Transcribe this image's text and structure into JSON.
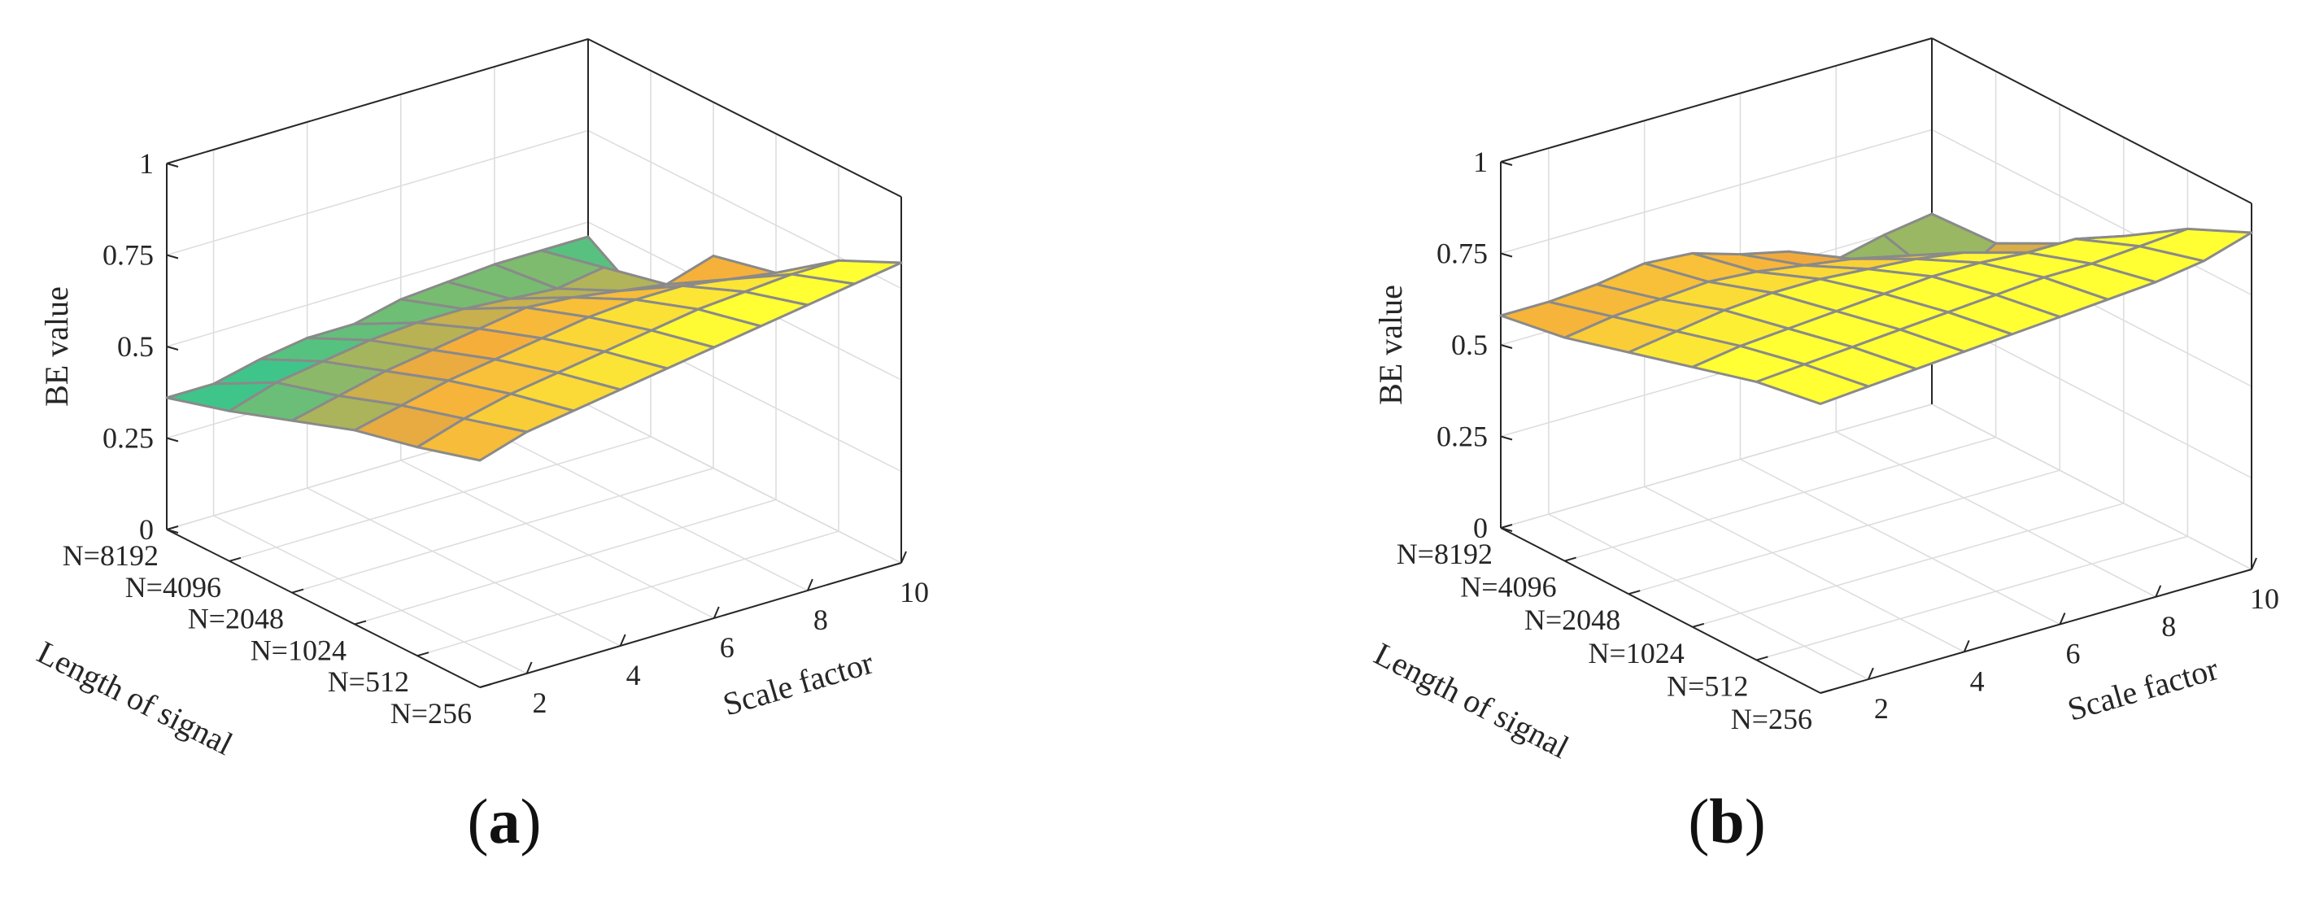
{
  "chart_data": [
    {
      "type": "surface3d",
      "caption": "a",
      "zlabel": "BE value",
      "xlabel": "Scale factor",
      "ylabel": "Length of signal",
      "x_ticks": [
        2,
        4,
        6,
        8,
        10
      ],
      "x_range": [
        1,
        10
      ],
      "y_categories": [
        "N=256",
        "N=512",
        "N=1024",
        "N=2048",
        "N=4096",
        "N=8192"
      ],
      "z_ticks": [
        "0",
        "0.25",
        "0.5",
        "0.75",
        "1"
      ],
      "z_range": [
        0,
        1
      ],
      "grid": true,
      "colormap": [
        "#3fc58a",
        "#f5a93b",
        "#ffff33"
      ],
      "scale_factors": [
        1,
        2,
        3,
        4,
        5,
        6,
        7,
        8,
        9,
        10
      ],
      "surface": [
        [
          0.62,
          0.66,
          0.68,
          0.7,
          0.72,
          0.74,
          0.76,
          0.78,
          0.8,
          0.82
        ],
        [
          0.57,
          0.61,
          0.64,
          0.66,
          0.68,
          0.7,
          0.72,
          0.73,
          0.74,
          0.74
        ],
        [
          0.53,
          0.56,
          0.59,
          0.61,
          0.63,
          0.65,
          0.66,
          0.66,
          0.64,
          0.62
        ],
        [
          0.47,
          0.5,
          0.53,
          0.55,
          0.57,
          0.59,
          0.58,
          0.56,
          0.54,
          0.58
        ],
        [
          0.41,
          0.45,
          0.47,
          0.49,
          0.5,
          0.5,
          0.49,
          0.48,
          0.5,
          0.35
        ],
        [
          0.36,
          0.36,
          0.39,
          0.41,
          0.41,
          0.44,
          0.45,
          0.46,
          0.46,
          0.46
        ]
      ]
    },
    {
      "type": "surface3d",
      "caption": "b",
      "zlabel": "BE value",
      "xlabel": "Scale factor",
      "ylabel": "Length of signal",
      "x_ticks": [
        2,
        4,
        6,
        8,
        10
      ],
      "x_range": [
        1,
        10
      ],
      "y_categories": [
        "N=256",
        "N=512",
        "N=1024",
        "N=2048",
        "N=4096",
        "N=8192"
      ],
      "z_ticks": [
        "0",
        "0.25",
        "0.5",
        "0.75",
        "1"
      ],
      "z_range": [
        0,
        1
      ],
      "grid": true,
      "colormap": [
        "#3fc58a",
        "#f5a93b",
        "#ffff33"
      ],
      "scale_factors": [
        1,
        2,
        3,
        4,
        5,
        6,
        7,
        8,
        9,
        10
      ],
      "surface": [
        [
          0.79,
          0.8,
          0.81,
          0.82,
          0.83,
          0.84,
          0.85,
          0.86,
          0.88,
          0.92
        ],
        [
          0.76,
          0.77,
          0.78,
          0.79,
          0.8,
          0.81,
          0.82,
          0.82,
          0.83,
          0.84
        ],
        [
          0.71,
          0.73,
          0.74,
          0.75,
          0.76,
          0.77,
          0.77,
          0.76,
          0.76,
          0.73
        ],
        [
          0.66,
          0.68,
          0.7,
          0.71,
          0.71,
          0.7,
          0.69,
          0.67,
          0.62,
          0.62
        ],
        [
          0.61,
          0.63,
          0.64,
          0.65,
          0.64,
          0.62,
          0.6,
          0.57,
          0.45,
          0.53
        ],
        [
          0.58,
          0.58,
          0.59,
          0.61,
          0.6,
          0.56,
          0.53,
          0.47,
          0.5,
          0.52
        ]
      ]
    }
  ]
}
